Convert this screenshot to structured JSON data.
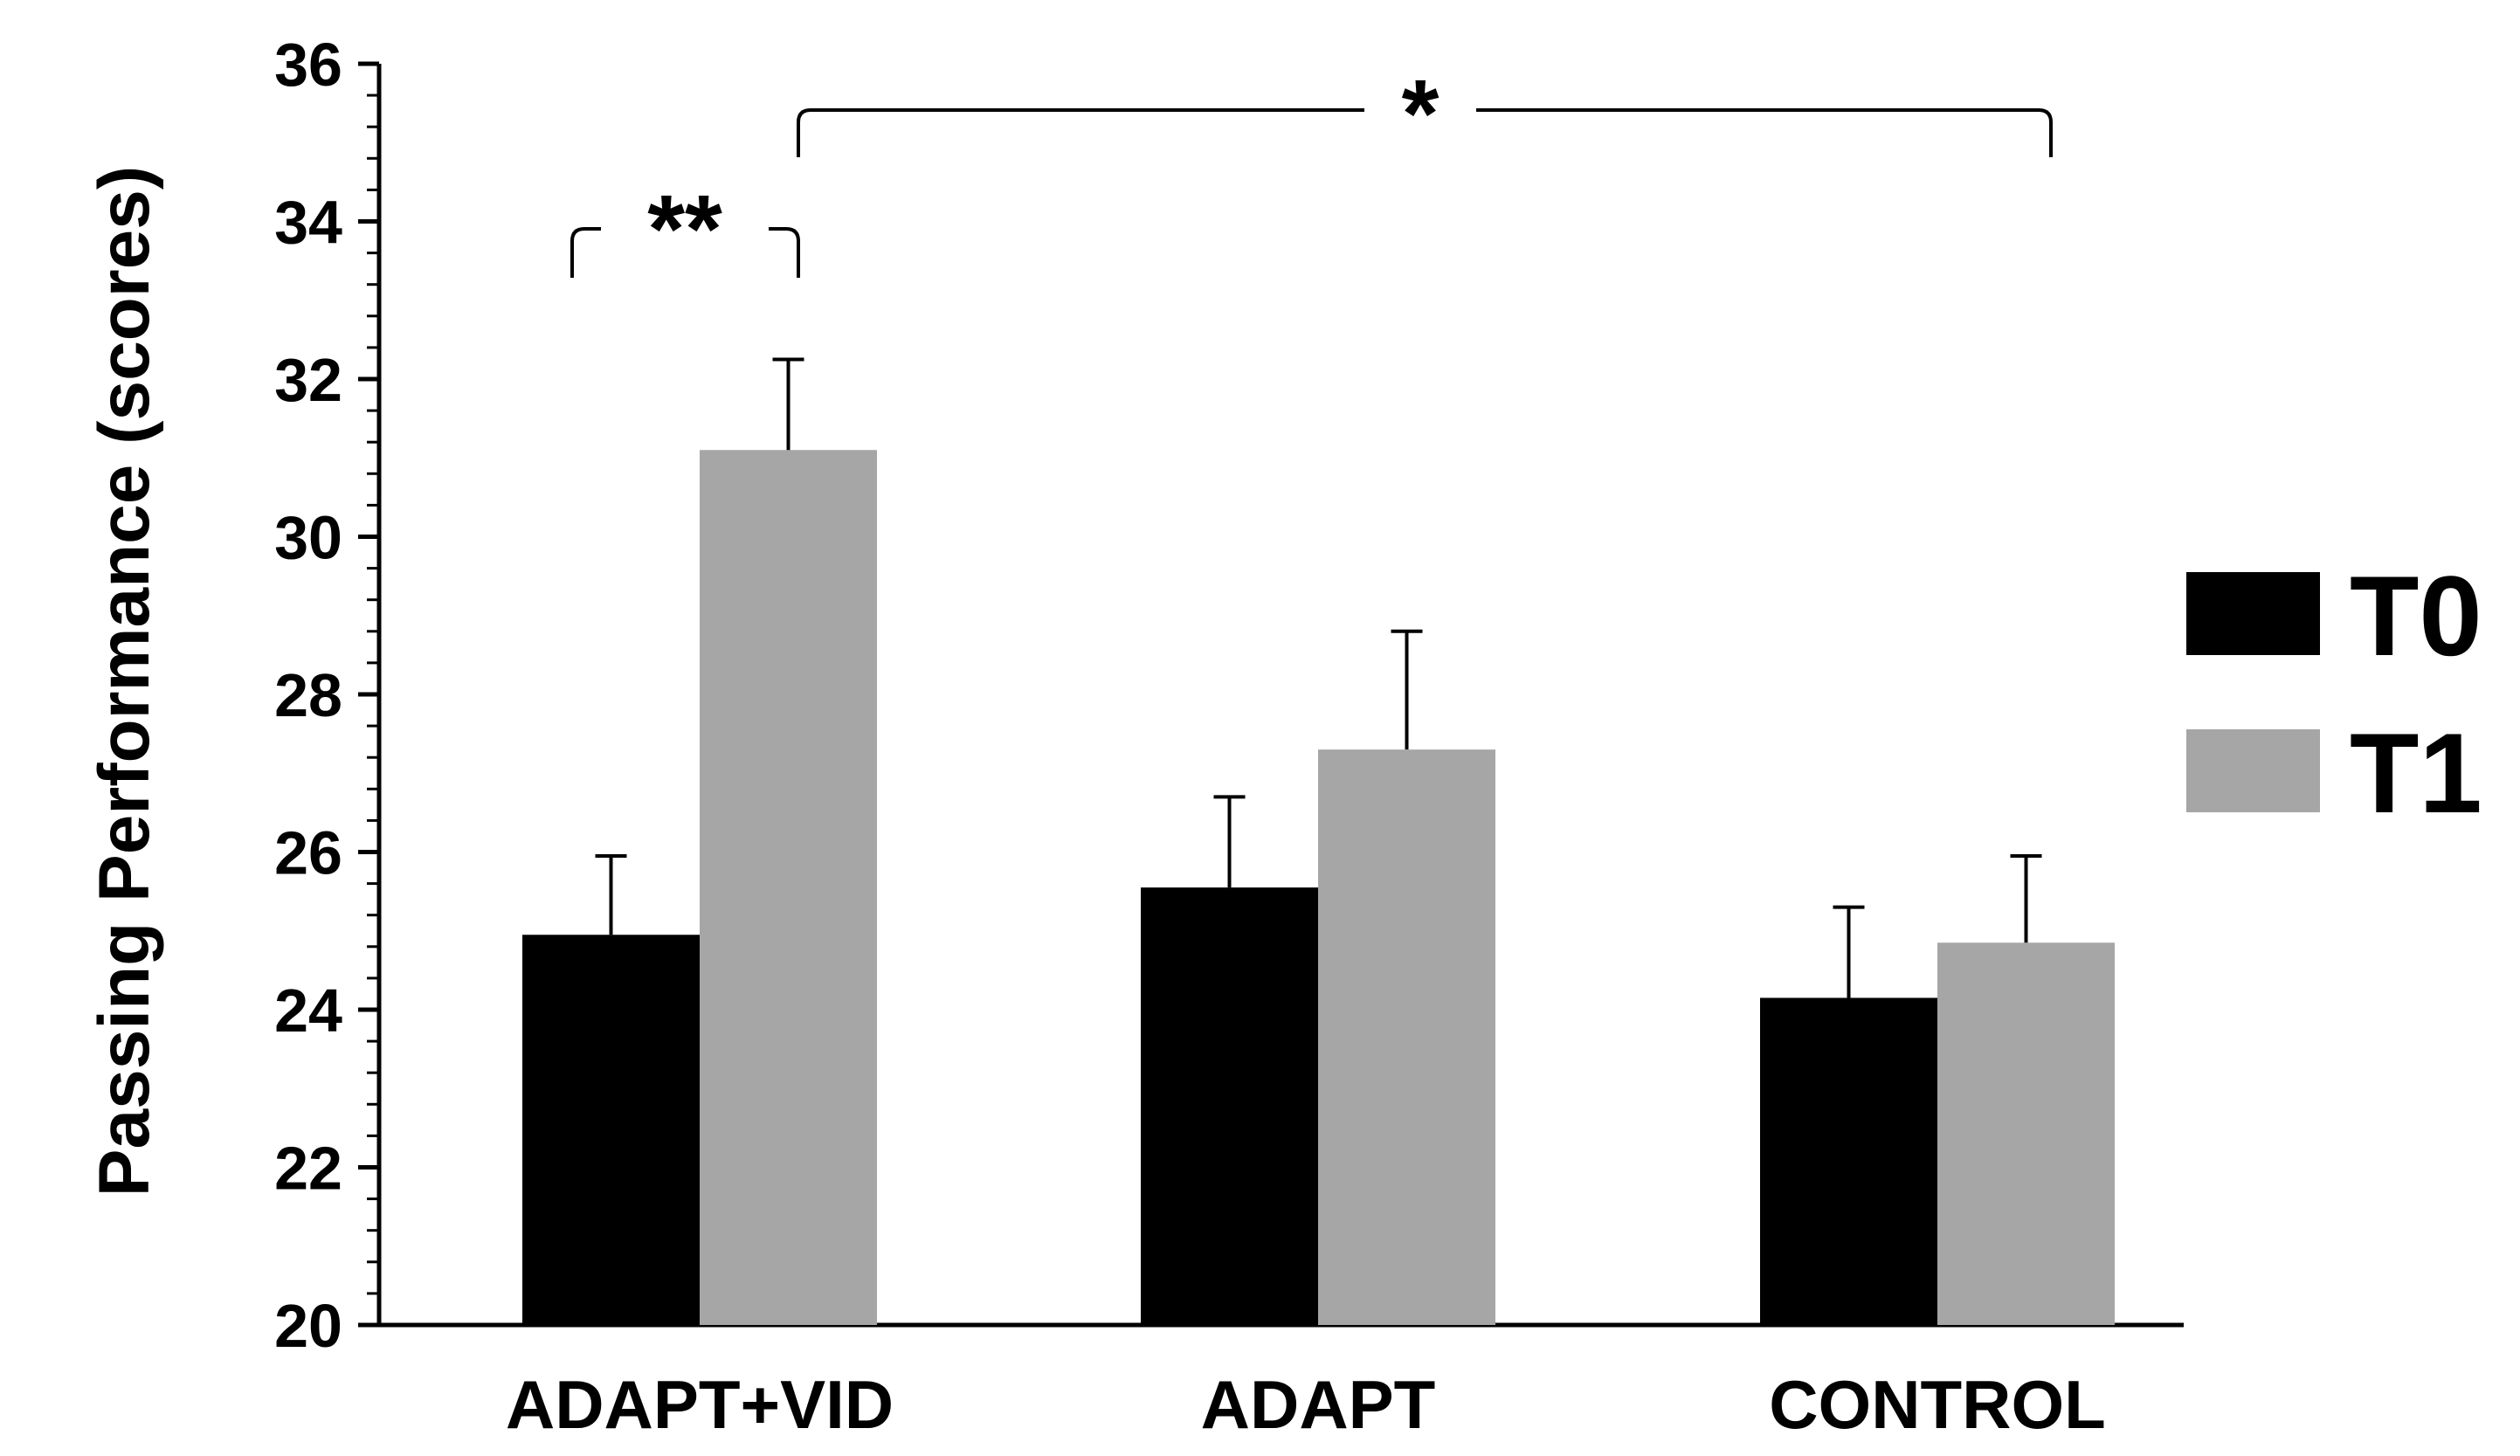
{
  "chart_data": {
    "type": "bar",
    "title": "",
    "xlabel": "",
    "ylabel": "Passing Performance (scores)",
    "ylim": [
      20,
      36
    ],
    "yticks": [
      20,
      22,
      24,
      26,
      28,
      30,
      32,
      34,
      36
    ],
    "grid": false,
    "legend_position": "right",
    "categories": [
      "ADAPT+VID",
      "ADAPT",
      "CONTROL"
    ],
    "series": [
      {
        "name": "T0",
        "color": "#000000",
        "values": [
          24.95,
          25.55,
          24.15
        ],
        "errors": [
          1.0,
          1.15,
          1.15
        ]
      },
      {
        "name": "T1",
        "color": "#a6a6a6",
        "values": [
          31.1,
          27.3,
          24.85
        ],
        "errors": [
          1.15,
          1.5,
          1.1
        ]
      }
    ],
    "annotations": [
      {
        "label": "**",
        "from": "ADAPT+VID T0",
        "to": "ADAPT+VID T1"
      },
      {
        "label": "*",
        "from": "ADAPT+VID T1",
        "to": "CONTROL T1"
      }
    ]
  }
}
